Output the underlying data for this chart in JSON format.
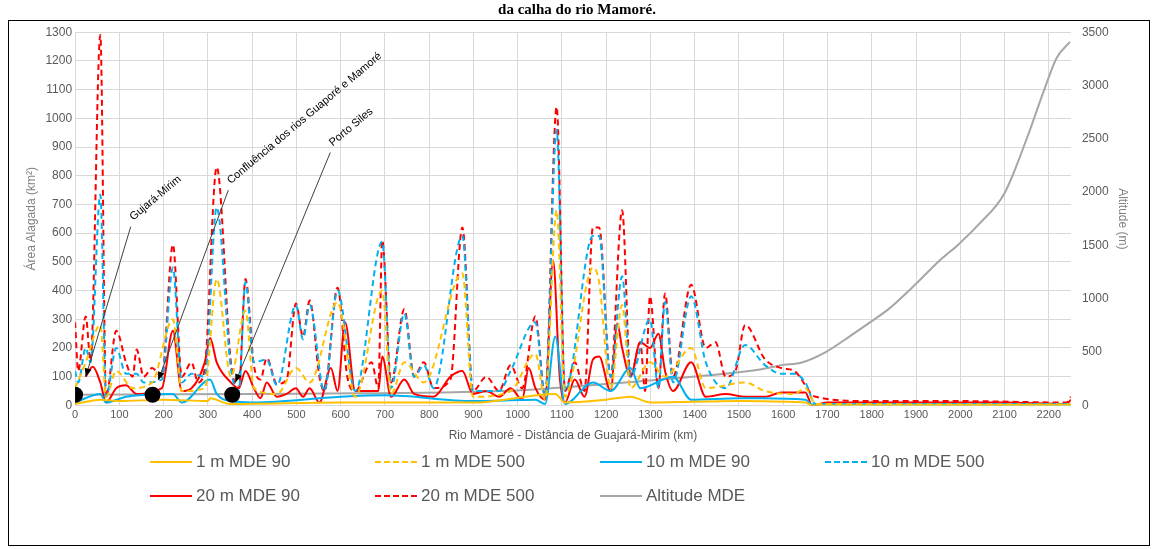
{
  "chart_data": {
    "type": "line",
    "title": "da calha do rio Mamoré.",
    "xlabel": "Rio Mamoré - Distância de Guajará-Mirim (km)",
    "ylabel": "Área Alagada (km²)",
    "y2label": "Altitude (m)",
    "xlim": [
      0,
      2250
    ],
    "xticks": [
      0,
      100,
      200,
      300,
      400,
      500,
      600,
      700,
      800,
      900,
      1000,
      1100,
      1200,
      1300,
      1400,
      1500,
      1600,
      1700,
      1800,
      1900,
      2000,
      2100,
      2200
    ],
    "ylim": [
      0,
      1300
    ],
    "yticks": [
      0,
      100,
      200,
      300,
      400,
      500,
      600,
      700,
      800,
      900,
      1000,
      1100,
      1200,
      1300
    ],
    "y2lim": [
      0,
      3500
    ],
    "y2ticks": [
      0,
      500,
      1000,
      1500,
      2000,
      2500,
      3000,
      3500
    ],
    "grid": true,
    "legend": "bottom",
    "marker": "none",
    "series": [
      {
        "name": "1 m MDE 90",
        "color": "#ffc000",
        "line_style": "solid",
        "x": [
          0,
          57,
          100,
          200,
          300,
          305,
          350,
          600,
          900,
          1085,
          1107,
          1200,
          1255,
          1300,
          1500,
          1650,
          1665,
          2250
        ],
        "values": [
          5,
          20,
          15,
          20,
          15,
          25,
          5,
          10,
          10,
          40,
          10,
          20,
          30,
          10,
          15,
          10,
          0,
          2
        ]
      },
      {
        "name": "1 m MDE 500",
        "color": "#ffc000",
        "line_style": "dashed",
        "x": [
          0,
          24,
          57,
          70,
          93,
          130,
          174,
          221,
          241,
          293,
          320,
          352,
          385,
          404,
          456,
          499,
          530,
          593,
          633,
          694,
          714,
          744,
          788,
          875,
          899,
          984,
          1040,
          1062,
          1088,
          1107,
          1170,
          1184,
          1210,
          1236,
          1255,
          1299,
          1333,
          1392,
          1425,
          1514,
          1559,
          1625,
          1650,
          1673,
          2250
        ],
        "values": [
          60,
          150,
          280,
          30,
          120,
          60,
          80,
          300,
          50,
          60,
          440,
          100,
          330,
          60,
          40,
          130,
          80,
          360,
          30,
          400,
          40,
          150,
          80,
          460,
          30,
          50,
          180,
          20,
          680,
          30,
          480,
          430,
          60,
          350,
          60,
          150,
          100,
          200,
          60,
          80,
          50,
          40,
          60,
          5,
          3
        ]
      },
      {
        "name": "10 m MDE 90",
        "color": "#00b0f0",
        "line_style": "solid",
        "x": [
          0,
          57,
          70,
          115,
          221,
          241,
          305,
          320,
          352,
          400,
          600,
          700,
          900,
          1040,
          1062,
          1085,
          1107,
          1170,
          1210,
          1255,
          1277,
          1351,
          1392,
          1500,
          1650,
          1665,
          2250
        ],
        "values": [
          10,
          40,
          10,
          30,
          40,
          10,
          90,
          40,
          15,
          10,
          30,
          35,
          15,
          20,
          5,
          240,
          5,
          80,
          50,
          130,
          60,
          100,
          20,
          25,
          20,
          3,
          3
        ]
      },
      {
        "name": "10 m MDE 500",
        "color": "#00b0f0",
        "line_style": "dashed",
        "x": [
          0,
          7,
          24,
          35,
          57,
          70,
          93,
          115,
          139,
          155,
          196,
          221,
          241,
          263,
          293,
          320,
          352,
          370,
          385,
          404,
          433,
          456,
          499,
          515,
          530,
          563,
          593,
          633,
          694,
          714,
          744,
          766,
          788,
          810,
          875,
          899,
          958,
          984,
          1040,
          1062,
          1088,
          1107,
          1170,
          1184,
          1210,
          1236,
          1255,
          1299,
          1318,
          1333,
          1351,
          1392,
          1425,
          1470,
          1514,
          1559,
          1596,
          1625,
          1650,
          1673,
          2250
        ],
        "values": [
          120,
          80,
          200,
          150,
          735,
          30,
          200,
          110,
          110,
          80,
          90,
          480,
          80,
          110,
          100,
          690,
          130,
          50,
          430,
          150,
          160,
          70,
          350,
          230,
          350,
          50,
          400,
          50,
          570,
          60,
          320,
          100,
          140,
          60,
          590,
          50,
          50,
          120,
          290,
          30,
          960,
          50,
          590,
          590,
          100,
          450,
          100,
          300,
          60,
          360,
          80,
          380,
          150,
          60,
          210,
          140,
          110,
          110,
          80,
          5,
          5
        ]
      },
      {
        "name": "20 m MDE 90",
        "color": "#ff0000",
        "line_style": "solid",
        "x": [
          24,
          40,
          57,
          70,
          93,
          115,
          139,
          196,
          221,
          241,
          263,
          293,
          305,
          320,
          352,
          370,
          385,
          404,
          419,
          433,
          456,
          478,
          499,
          515,
          530,
          552,
          578,
          593,
          610,
          633,
          685,
          694,
          714,
          744,
          766,
          810,
          848,
          875,
          899,
          929,
          958,
          984,
          1010,
          1025,
          1040,
          1062,
          1080,
          1095,
          1107,
          1129,
          1151,
          1170,
          1184,
          1210,
          1225,
          1236,
          1255,
          1277,
          1299,
          1318,
          1333,
          1351,
          1392,
          1425,
          1470,
          1514,
          1559,
          1596,
          1650,
          1665,
          1700,
          1900,
          2100,
          2240,
          2250
        ],
        "values": [
          100,
          135,
          80,
          10,
          60,
          70,
          40,
          60,
          260,
          50,
          60,
          150,
          235,
          150,
          80,
          60,
          120,
          60,
          25,
          80,
          30,
          40,
          60,
          30,
          60,
          10,
          130,
          50,
          290,
          50,
          50,
          170,
          30,
          90,
          40,
          30,
          100,
          120,
          40,
          50,
          30,
          60,
          20,
          130,
          60,
          20,
          505,
          100,
          10,
          90,
          30,
          160,
          170,
          50,
          285,
          200,
          100,
          220,
          200,
          250,
          120,
          50,
          150,
          30,
          40,
          30,
          30,
          45,
          45,
          0,
          10,
          10,
          10,
          5,
          20
        ]
      },
      {
        "name": "20 m MDE 500",
        "color": "#ff0000",
        "line_style": "dashed",
        "x": [
          0,
          7,
          24,
          35,
          57,
          70,
          93,
          115,
          130,
          139,
          155,
          174,
          196,
          221,
          241,
          263,
          278,
          293,
          320,
          352,
          370,
          385,
          404,
          419,
          433,
          456,
          478,
          499,
          515,
          530,
          552,
          563,
          593,
          615,
          633,
          670,
          685,
          694,
          714,
          744,
          766,
          788,
          810,
          848,
          875,
          899,
          929,
          958,
          984,
          1010,
          1040,
          1062,
          1088,
          1107,
          1129,
          1151,
          1170,
          1184,
          1210,
          1236,
          1255,
          1277,
          1288,
          1299,
          1318,
          1333,
          1351,
          1392,
          1425,
          1447,
          1470,
          1492,
          1514,
          1559,
          1596,
          1625,
          1673,
          1800,
          2000,
          2240,
          2250
        ],
        "values": [
          290,
          120,
          310,
          155,
          1290,
          30,
          260,
          150,
          100,
          195,
          100,
          130,
          100,
          560,
          100,
          150,
          80,
          130,
          830,
          150,
          60,
          440,
          140,
          90,
          165,
          75,
          90,
          355,
          240,
          365,
          100,
          50,
          410,
          100,
          50,
          150,
          60,
          575,
          80,
          335,
          100,
          150,
          60,
          90,
          620,
          50,
          100,
          50,
          140,
          60,
          310,
          30,
          1040,
          50,
          150,
          50,
          620,
          620,
          100,
          680,
          100,
          220,
          50,
          380,
          60,
          390,
          100,
          420,
          200,
          220,
          100,
          120,
          280,
          160,
          130,
          120,
          30,
          15,
          15,
          10,
          30
        ]
      },
      {
        "name": "Altitude MDE",
        "color": "#a6a6a6",
        "line_style": "solid",
        "axis": "y2",
        "x": [
          0,
          500,
          1000,
          1200,
          1400,
          1551,
          1600,
          1640,
          1696,
          1751,
          1800,
          1840,
          1900,
          1951,
          1996,
          2040,
          2100,
          2151,
          2188,
          2218,
          2248
        ],
        "values": [
          100,
          110,
          140,
          200,
          270,
          340,
          380,
          400,
          500,
          650,
          790,
          910,
          1140,
          1350,
          1510,
          1690,
          1990,
          2510,
          2940,
          3260,
          3410
        ]
      },
      {
        "type": "scatter",
        "color": "#000000",
        "axis": "y2",
        "marker": "circle",
        "x": [
          0,
          175,
          355
        ],
        "values": [
          100,
          100,
          100
        ]
      }
    ],
    "annotations": [
      {
        "text": "Gujará-Mirim",
        "x": 24,
        "y": 100
      },
      {
        "text": "Confluência dos rios Guaporé e Mamoré",
        "x": 188,
        "y": 88
      },
      {
        "text": "Porto Siles",
        "x": 362,
        "y": 80
      }
    ]
  }
}
